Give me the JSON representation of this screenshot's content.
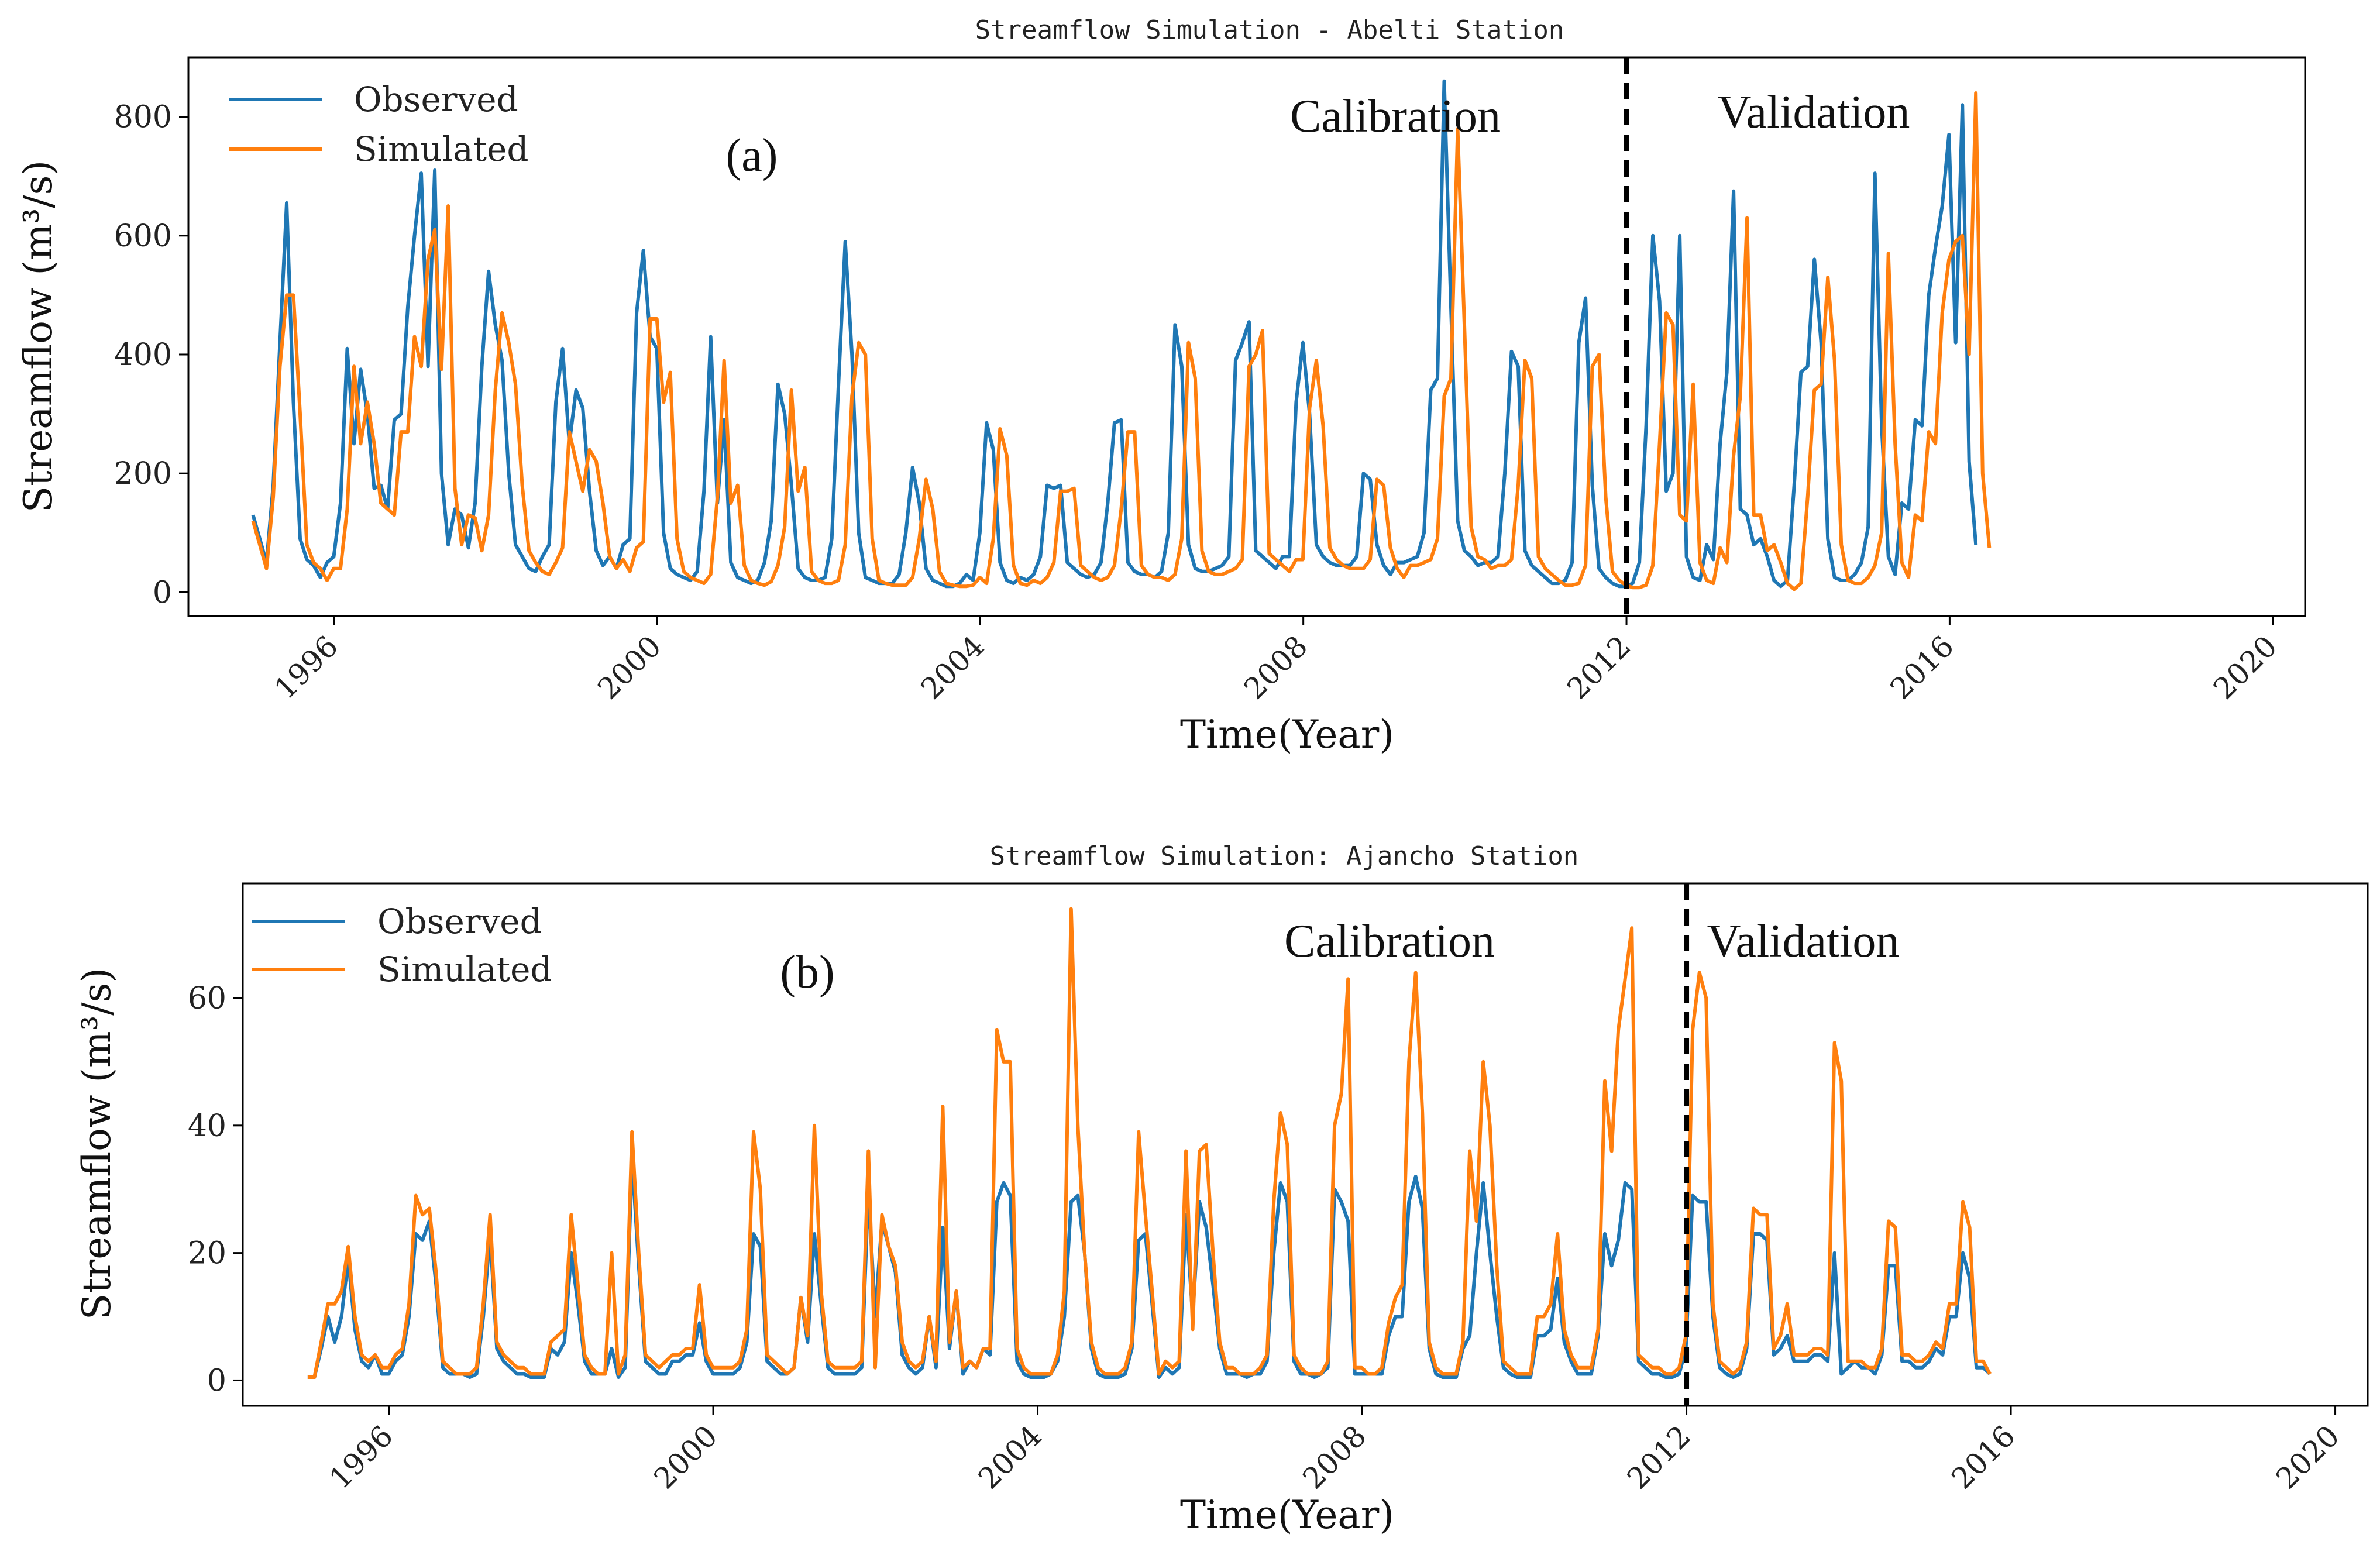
{
  "chart_data": [
    {
      "type": "line",
      "title": "Streamflow Simulation - Abelti Station",
      "xlabel": "Time(Year)",
      "ylabel": "Streamflow (m³/s)",
      "panel_label": "(a)",
      "xlim": [
        1994.2,
        2020.4
      ],
      "ylim": [
        -40,
        900
      ],
      "xticks": [
        1996,
        2000,
        2004,
        2008,
        2012,
        2016,
        2020
      ],
      "xtick_labels": [
        "1996",
        "2000",
        "2004",
        "2008",
        "2012",
        "2016",
        "2020"
      ],
      "yticks": [
        0,
        200,
        400,
        600,
        800
      ],
      "ytick_labels": [
        "0",
        "200",
        "400",
        "600",
        "800"
      ],
      "divider_x": 2012,
      "period_labels": [
        "Calibration",
        "Validation"
      ],
      "legend_position": "top-left",
      "x_start": 1995.0,
      "x_step": 0.0833,
      "series": [
        {
          "name": "Observed",
          "color": "#1f77b4",
          "values": [
            130,
            90,
            50,
            180,
            420,
            655,
            320,
            90,
            55,
            45,
            25,
            50,
            60,
            150,
            410,
            250,
            375,
            300,
            175,
            180,
            140,
            290,
            300,
            480,
            600,
            705,
            380,
            710,
            200,
            80,
            140,
            130,
            75,
            150,
            380,
            540,
            450,
            390,
            200,
            80,
            60,
            40,
            35,
            60,
            80,
            320,
            410,
            250,
            340,
            310,
            170,
            70,
            45,
            60,
            40,
            80,
            90,
            470,
            575,
            430,
            410,
            100,
            40,
            30,
            25,
            20,
            35,
            170,
            430,
            150,
            290,
            50,
            25,
            20,
            15,
            20,
            50,
            120,
            350,
            300,
            180,
            40,
            25,
            20,
            20,
            25,
            90,
            350,
            590,
            400,
            100,
            25,
            20,
            15,
            15,
            15,
            30,
            100,
            210,
            150,
            40,
            20,
            15,
            10,
            10,
            15,
            30,
            20,
            100,
            285,
            240,
            50,
            20,
            15,
            25,
            20,
            30,
            60,
            180,
            175,
            180,
            50,
            40,
            30,
            25,
            30,
            50,
            150,
            285,
            290,
            50,
            35,
            30,
            30,
            25,
            35,
            100,
            450,
            380,
            80,
            40,
            35,
            35,
            40,
            45,
            60,
            390,
            420,
            455,
            70,
            60,
            50,
            40,
            60,
            60,
            320,
            420,
            300,
            80,
            60,
            50,
            45,
            45,
            45,
            60,
            200,
            190,
            80,
            45,
            30,
            50,
            50,
            55,
            60,
            100,
            340,
            360,
            860,
            480,
            120,
            70,
            60,
            45,
            50,
            50,
            60,
            200,
            405,
            380,
            70,
            45,
            35,
            25,
            15,
            15,
            20,
            50,
            420,
            495,
            180,
            40,
            25,
            15,
            10,
            10,
            15,
            50,
            280,
            600,
            490,
            170,
            200,
            600,
            60,
            25,
            20,
            80,
            55,
            250,
            370,
            675,
            140,
            130,
            80,
            90,
            60,
            20,
            10,
            20,
            180,
            370,
            380,
            560,
            420,
            90,
            25,
            20,
            20,
            30,
            50,
            110,
            705,
            280,
            60,
            30,
            150,
            140,
            290,
            280,
            500,
            580,
            650,
            770,
            420,
            820,
            220,
            80
          ]
        },
        {
          "name": "Simulated",
          "color": "#ff7f0e",
          "values": [
            120,
            80,
            40,
            160,
            380,
            500,
            500,
            300,
            80,
            50,
            40,
            20,
            40,
            40,
            140,
            380,
            250,
            320,
            250,
            150,
            140,
            130,
            270,
            270,
            430,
            380,
            560,
            610,
            375,
            650,
            175,
            80,
            130,
            125,
            70,
            130,
            340,
            470,
            420,
            350,
            180,
            70,
            50,
            35,
            30,
            50,
            75,
            270,
            220,
            170,
            240,
            220,
            150,
            60,
            40,
            55,
            35,
            75,
            85,
            460,
            460,
            320,
            370,
            90,
            35,
            25,
            20,
            15,
            30,
            160,
            390,
            150,
            180,
            45,
            20,
            15,
            12,
            18,
            45,
            110,
            340,
            170,
            210,
            35,
            20,
            15,
            15,
            20,
            80,
            330,
            420,
            400,
            90,
            20,
            15,
            12,
            12,
            12,
            25,
            90,
            190,
            140,
            35,
            15,
            12,
            10,
            10,
            12,
            25,
            15,
            90,
            275,
            230,
            45,
            15,
            12,
            20,
            15,
            25,
            50,
            170,
            170,
            175,
            45,
            35,
            25,
            20,
            25,
            45,
            140,
            270,
            270,
            45,
            30,
            25,
            25,
            20,
            30,
            90,
            420,
            360,
            70,
            35,
            30,
            30,
            35,
            40,
            55,
            380,
            400,
            440,
            65,
            55,
            45,
            35,
            55,
            55,
            310,
            390,
            280,
            75,
            55,
            45,
            40,
            40,
            40,
            55,
            190,
            180,
            75,
            40,
            25,
            45,
            45,
            50,
            55,
            90,
            330,
            360,
            780,
            450,
            110,
            60,
            55,
            40,
            45,
            45,
            55,
            180,
            390,
            360,
            60,
            40,
            30,
            20,
            12,
            12,
            15,
            45,
            380,
            400,
            160,
            35,
            20,
            12,
            8,
            8,
            12,
            45,
            250,
            470,
            450,
            130,
            120,
            350,
            50,
            20,
            15,
            75,
            50,
            230,
            330,
            630,
            130,
            130,
            70,
            80,
            50,
            15,
            5,
            15,
            160,
            340,
            350,
            530,
            390,
            80,
            20,
            15,
            15,
            25,
            45,
            100,
            570,
            250,
            50,
            25,
            130,
            120,
            270,
            250,
            470,
            560,
            590,
            600,
            400,
            840,
            200,
            75
          ]
        }
      ]
    },
    {
      "type": "line",
      "title": "Streamflow Simulation: Ajancho Station",
      "xlabel": "Time(Year)",
      "ylabel": "Streamflow (m³/s)",
      "panel_label": "(b)",
      "xlim": [
        1994.2,
        2020.4
      ],
      "ylim": [
        -4,
        78
      ],
      "xticks": [
        1996,
        2000,
        2004,
        2008,
        2012,
        2016,
        2020
      ],
      "xtick_labels": [
        "1996",
        "2000",
        "2004",
        "2008",
        "2012",
        "2016",
        "2020"
      ],
      "yticks": [
        0,
        20,
        40,
        60
      ],
      "ytick_labels": [
        "0",
        "20",
        "40",
        "60"
      ],
      "divider_x": 2012,
      "period_labels": [
        "Calibration",
        "Validation"
      ],
      "legend_position": "top-left",
      "x_start": 1995.0,
      "x_step": 0.0833,
      "series": [
        {
          "name": "Observed",
          "color": "#1f77b4",
          "values": [
            0.5,
            0.5,
            5,
            10,
            6,
            10,
            19,
            8,
            3,
            2,
            4,
            1,
            1,
            3,
            4,
            10,
            23,
            22,
            25,
            15,
            2,
            1,
            1,
            1,
            0.5,
            1,
            10,
            23,
            5,
            3,
            2,
            1,
            1,
            0.5,
            0.5,
            0.5,
            5,
            4,
            6,
            20,
            12,
            3,
            1,
            1,
            1,
            5,
            0.5,
            2,
            35,
            18,
            3,
            2,
            1,
            1,
            3,
            3,
            4,
            4,
            9,
            3,
            1,
            1,
            1,
            1,
            2,
            6,
            23,
            21,
            3,
            2,
            1,
            1,
            2,
            13,
            6,
            23,
            12,
            2,
            1,
            1,
            1,
            1,
            2,
            30,
            10,
            25,
            21,
            17,
            4,
            2,
            1,
            2,
            10,
            2,
            24,
            5,
            14,
            1,
            3,
            2,
            5,
            4,
            28,
            31,
            29,
            3,
            1,
            0.5,
            0.5,
            0.5,
            1,
            3,
            10,
            28,
            29,
            20,
            5,
            1,
            0.5,
            0.5,
            0.5,
            1,
            5,
            22,
            23,
            12,
            0.5,
            2,
            1,
            2,
            26,
            10,
            28,
            24,
            15,
            5,
            1,
            1,
            1,
            0.5,
            1,
            1,
            3,
            20,
            31,
            28,
            3,
            1,
            1,
            0.5,
            1,
            2,
            30,
            28,
            25,
            1,
            1,
            1,
            1,
            1,
            7,
            10,
            10,
            28,
            32,
            27,
            5,
            1,
            0.5,
            0.5,
            0.5,
            5,
            7,
            20,
            31,
            20,
            10,
            2,
            1,
            0.5,
            0.5,
            0.5,
            7,
            7,
            8,
            16,
            6,
            3,
            1,
            1,
            1,
            7,
            23,
            18,
            22,
            31,
            30,
            3,
            2,
            1,
            1,
            0.5,
            0.5,
            1,
            5,
            29,
            28,
            28,
            10,
            2,
            1,
            0.5,
            1,
            5,
            23,
            23,
            22,
            4,
            5,
            7,
            3,
            3,
            3,
            4,
            4,
            3,
            20,
            1,
            2,
            3,
            2,
            2,
            1,
            4,
            18,
            18,
            3,
            3,
            2,
            2,
            3,
            5,
            4,
            10,
            10,
            20,
            16,
            2,
            2,
            1
          ]
        },
        {
          "name": "Simulated",
          "color": "#ff7f0e",
          "values": [
            0.5,
            0.5,
            6,
            12,
            12,
            14,
            21,
            10,
            4,
            3,
            4,
            2,
            2,
            4,
            5,
            12,
            29,
            26,
            27,
            17,
            3,
            2,
            1,
            1,
            1,
            2,
            12,
            26,
            6,
            4,
            3,
            2,
            2,
            1,
            1,
            1,
            6,
            7,
            8,
            26,
            15,
            4,
            2,
            1,
            1,
            20,
            1,
            4,
            39,
            20,
            4,
            3,
            2,
            3,
            4,
            4,
            5,
            5,
            15,
            4,
            2,
            2,
            2,
            2,
            3,
            8,
            39,
            30,
            4,
            3,
            2,
            1,
            2,
            13,
            7,
            40,
            14,
            3,
            2,
            2,
            2,
            2,
            3,
            36,
            2,
            26,
            21,
            18,
            6,
            3,
            2,
            3,
            10,
            3,
            43,
            6,
            14,
            2,
            3,
            2,
            5,
            5,
            55,
            50,
            50,
            5,
            2,
            1,
            1,
            1,
            1,
            4,
            14,
            74,
            40,
            20,
            6,
            2,
            1,
            1,
            1,
            2,
            6,
            39,
            26,
            14,
            1,
            3,
            2,
            3,
            36,
            8,
            36,
            37,
            20,
            6,
            2,
            2,
            1,
            1,
            1,
            2,
            4,
            28,
            42,
            37,
            4,
            2,
            1,
            1,
            1,
            3,
            40,
            45,
            63,
            2,
            2,
            1,
            1,
            2,
            9,
            13,
            15,
            50,
            64,
            42,
            6,
            2,
            1,
            1,
            1,
            6,
            36,
            25,
            50,
            40,
            18,
            3,
            2,
            1,
            1,
            1,
            10,
            10,
            12,
            23,
            8,
            4,
            2,
            2,
            2,
            8,
            47,
            36,
            55,
            63,
            71,
            4,
            3,
            2,
            2,
            1,
            1,
            2,
            7,
            55,
            64,
            60,
            12,
            3,
            2,
            1,
            2,
            6,
            27,
            26,
            26,
            5,
            7,
            12,
            4,
            4,
            4,
            5,
            5,
            4,
            53,
            47,
            3,
            3,
            3,
            2,
            2,
            5,
            25,
            24,
            4,
            4,
            3,
            3,
            4,
            6,
            5,
            12,
            12,
            28,
            24,
            3,
            3,
            1
          ]
        }
      ]
    }
  ]
}
